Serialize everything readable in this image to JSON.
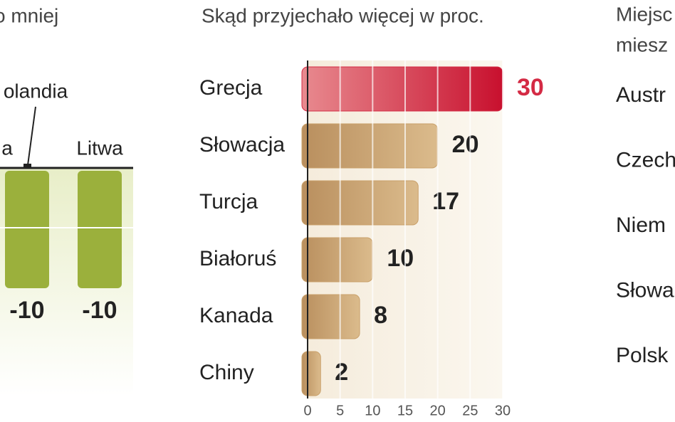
{
  "chart_data": [
    {
      "type": "bar",
      "title": "o mniej",
      "annotation": "olandia",
      "categories": [
        "a",
        "Litwa"
      ],
      "values": [
        -10,
        -10
      ],
      "color": "#9bb03c",
      "ylim": [
        -10,
        0
      ]
    },
    {
      "type": "barh",
      "title": "Skąd przyjechało więcej w proc.",
      "categories": [
        "Grecja",
        "Słowacja",
        "Turcja",
        "Białoruś",
        "Kanada",
        "Chiny"
      ],
      "values": [
        30,
        20,
        17,
        10,
        8,
        2
      ],
      "colors": [
        "#d42a44",
        "#c9a06a",
        "#c9a06a",
        "#c9a06a",
        "#c9a06a",
        "#c9a06a"
      ],
      "xlim": [
        0,
        30
      ],
      "xticks": [
        0,
        5,
        10,
        15,
        20,
        25,
        30
      ],
      "grid": true
    }
  ],
  "right_panel": {
    "title_lines": [
      "Miejsc",
      "miesz"
    ],
    "items": [
      "Austr",
      "Czech",
      "Niem",
      "Słowa",
      "Polsk"
    ]
  }
}
